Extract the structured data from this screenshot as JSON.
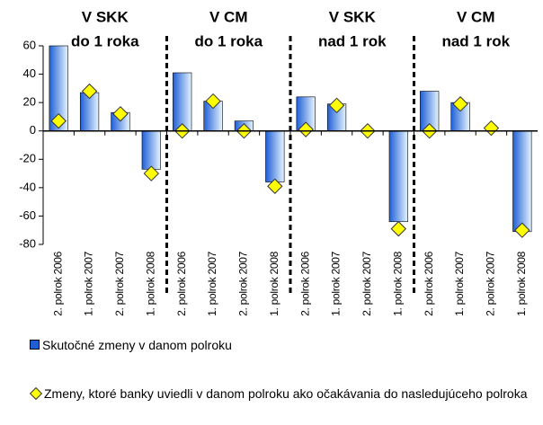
{
  "chart_data": {
    "type": "bar",
    "groups": [
      [
        "V SKK",
        "do 1 roka"
      ],
      [
        "V CM",
        "do 1 roka"
      ],
      [
        "V SKK",
        "nad 1 rok"
      ],
      [
        "V CM",
        "nad 1 rok"
      ]
    ],
    "categories": [
      "2. polrok 2006",
      "1. polrok 2007",
      "2. polrok 2007",
      "1. polrok 2008",
      "2. polrok 2006",
      "1. polrok 2007",
      "2. polrok 2007",
      "1. polrok 2008",
      "2. polrok 2006",
      "1. polrok 2007",
      "2. polrok 2007",
      "1. polrok 2008",
      "2. polrok 2006",
      "1. polrok 2007",
      "2. polrok 2007",
      "1. polrok 2008"
    ],
    "series": [
      {
        "name": "Skutočné zmeny v danom polroku",
        "color": "#1f5fd6",
        "kind": "bar",
        "values": [
          60,
          27,
          13,
          -27,
          41,
          21,
          7,
          -36,
          24,
          19,
          0,
          -64,
          28,
          20,
          0,
          -71
        ]
      },
      {
        "name": "Zmeny, ktoré banky uviedli v danom polroku ako očakávania do nasledujúceho polroka",
        "color": "#ffff00",
        "kind": "marker",
        "values": [
          7,
          28,
          12,
          -30,
          0,
          21,
          0,
          -39,
          1,
          18,
          0,
          -69,
          0,
          19,
          2,
          -70
        ]
      }
    ],
    "ylim": [
      -80,
      60
    ],
    "yticks": [
      -80,
      -60,
      -40,
      -20,
      0,
      20,
      40,
      60
    ],
    "grid": false
  }
}
